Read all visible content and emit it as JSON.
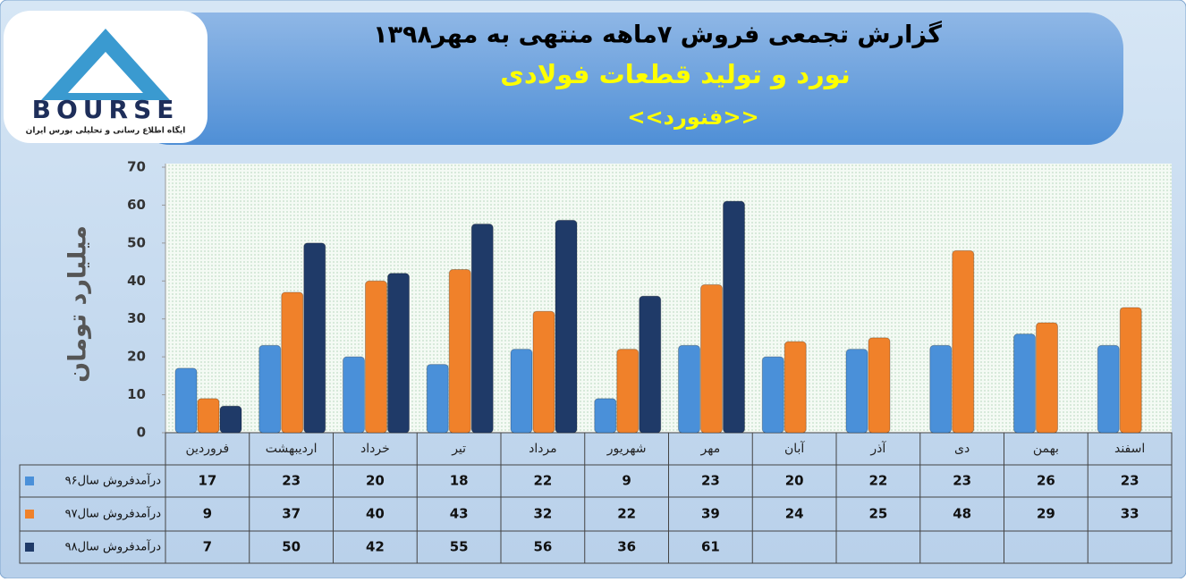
{
  "logo": {
    "name": "BOURSE",
    "tagline": "ایگاه اطلاع رسانی و تحلیلی بورس ایران"
  },
  "chart_data": {
    "type": "bar",
    "title": "گزارش تجمعی فروش ۷ماهه منتهی به مهر۱۳۹۸",
    "subtitle": "نورد و تولید قطعات فولادی",
    "company": "<<فنورد>>",
    "y_label": "میلیارد تومان",
    "categories": [
      "فروردین",
      "اردیبهشت",
      "خرداد",
      "تیر",
      "مرداد",
      "شهریور",
      "مهر",
      "آبان",
      "آذر",
      "دی",
      "بهمن",
      "اسفند"
    ],
    "series": [
      {
        "name": "درآمدفروش سال۹۶",
        "color": "#4a90d9",
        "values": [
          17,
          23,
          20,
          18,
          22,
          9,
          23,
          20,
          22,
          23,
          26,
          23
        ]
      },
      {
        "name": "درآمدفروش سال۹۷",
        "color": "#f0812a",
        "values": [
          9,
          37,
          40,
          43,
          32,
          22,
          39,
          24,
          25,
          48,
          29,
          33
        ]
      },
      {
        "name": "درآمدفروش سال۹۸",
        "color": "#1f3a68",
        "values": [
          7,
          50,
          42,
          55,
          56,
          36,
          61,
          null,
          null,
          null,
          null,
          null
        ]
      }
    ],
    "ylim": [
      0,
      70
    ],
    "yticks": [
      0,
      10,
      20,
      30,
      40,
      50,
      60,
      70
    ]
  }
}
